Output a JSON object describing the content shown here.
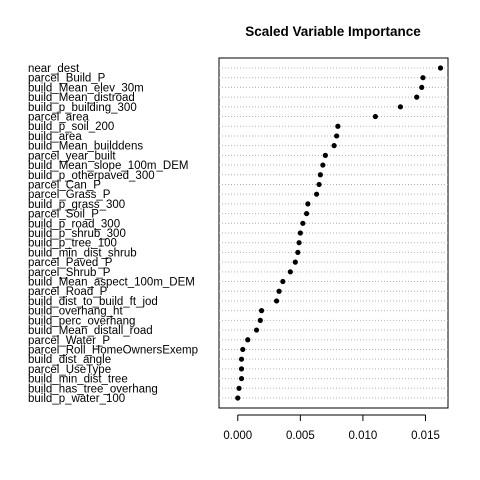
{
  "chart_data": {
    "type": "scatter",
    "title": "Scaled Variable Importance",
    "xlabel": "",
    "ylabel": "",
    "xlim": [
      -0.0015,
      0.0168
    ],
    "xticks": [
      "0.000",
      "0.005",
      "0.010",
      "0.015"
    ],
    "xtick_values": [
      0,
      0.005,
      0.01,
      0.015
    ],
    "grid": "dotted horizontal lines at each variable",
    "variables": [
      {
        "name": "near_dest",
        "value": 0.0162
      },
      {
        "name": "parcel_Build_P",
        "value": 0.0148
      },
      {
        "name": "build_Mean_elev_30m",
        "value": 0.0147
      },
      {
        "name": "build_Mean_distroad",
        "value": 0.0143
      },
      {
        "name": "build_p_building_300",
        "value": 0.013
      },
      {
        "name": "parcel_area",
        "value": 0.011
      },
      {
        "name": "build_p_soil_200",
        "value": 0.008
      },
      {
        "name": "build_area",
        "value": 0.0079
      },
      {
        "name": "build_Mean_builddens",
        "value": 0.0077
      },
      {
        "name": "parcel_year_built",
        "value": 0.007
      },
      {
        "name": "build_Mean_slope_100m_DEM",
        "value": 0.0068
      },
      {
        "name": "build_p_otherpaved_300",
        "value": 0.0066
      },
      {
        "name": "parcel_Can_P",
        "value": 0.0065
      },
      {
        "name": "parcel_Grass_P",
        "value": 0.0063
      },
      {
        "name": "build_p_grass_300",
        "value": 0.0056
      },
      {
        "name": "parcel_Soil_P",
        "value": 0.0055
      },
      {
        "name": "build_p_road_300",
        "value": 0.0052
      },
      {
        "name": "build_p_shrub_300",
        "value": 0.005
      },
      {
        "name": "build_p_tree_100",
        "value": 0.0049
      },
      {
        "name": "build_min_dist_shrub",
        "value": 0.0048
      },
      {
        "name": "parcel_Paved_P",
        "value": 0.0046
      },
      {
        "name": "parcel_Shrub_P",
        "value": 0.0042
      },
      {
        "name": "build_Mean_aspect_100m_DEM",
        "value": 0.0036
      },
      {
        "name": "parcel_Road_P",
        "value": 0.0033
      },
      {
        "name": "build_dist_to_build_ft_jod",
        "value": 0.0031
      },
      {
        "name": "build_overhang_ht",
        "value": 0.0019
      },
      {
        "name": "build_perc_overhang",
        "value": 0.0018
      },
      {
        "name": "build_Mean_distall_road",
        "value": 0.0015
      },
      {
        "name": "parcel_Water_P",
        "value": 0.0008
      },
      {
        "name": "parcel_Roll_HomeOwnersExemp",
        "value": 0.0004
      },
      {
        "name": "build_dist_angle",
        "value": 0.0003
      },
      {
        "name": "parcel_UseType",
        "value": 0.0003
      },
      {
        "name": "build_min_dist_tree",
        "value": 0.0003
      },
      {
        "name": "build_has_tree_overhang",
        "value": 0.0001
      },
      {
        "name": "build_p_water_100",
        "value": 0.0
      }
    ]
  }
}
